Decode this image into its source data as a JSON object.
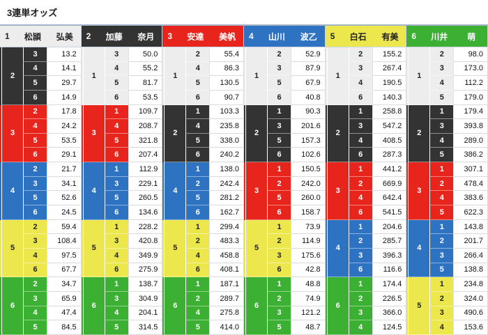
{
  "page_title": "3連単オッズ",
  "colors": {
    "1": {
      "bg": "#ededed",
      "fg": "#222222"
    },
    "2": {
      "bg": "#333333",
      "fg": "#ffffff"
    },
    "3": {
      "bg": "#e8251d",
      "fg": "#ffffff"
    },
    "4": {
      "bg": "#2e72c2",
      "fg": "#ffffff"
    },
    "5": {
      "bg": "#ebe74d",
      "fg": "#222222"
    },
    "6": {
      "bg": "#3cb032",
      "fg": "#ffffff"
    }
  },
  "columns": [
    {
      "racer_no": "1",
      "last_name": "松頴",
      "first_name": "弘美",
      "groups": [
        {
          "second": "2",
          "rows": [
            {
              "third": "3",
              "odds": "13.2"
            },
            {
              "third": "4",
              "odds": "14.1"
            },
            {
              "third": "5",
              "odds": "29.7"
            },
            {
              "third": "6",
              "odds": "14.9"
            }
          ]
        },
        {
          "second": "3",
          "rows": [
            {
              "third": "2",
              "odds": "17.8"
            },
            {
              "third": "4",
              "odds": "24.2"
            },
            {
              "third": "5",
              "odds": "53.5"
            },
            {
              "third": "6",
              "odds": "29.1"
            }
          ]
        },
        {
          "second": "4",
          "rows": [
            {
              "third": "2",
              "odds": "21.7"
            },
            {
              "third": "3",
              "odds": "34.1"
            },
            {
              "third": "5",
              "odds": "52.6"
            },
            {
              "third": "6",
              "odds": "24.5"
            }
          ]
        },
        {
          "second": "5",
          "rows": [
            {
              "third": "2",
              "odds": "59.4"
            },
            {
              "third": "3",
              "odds": "108.4"
            },
            {
              "third": "4",
              "odds": "97.5"
            },
            {
              "third": "6",
              "odds": "67.7"
            }
          ]
        },
        {
          "second": "6",
          "rows": [
            {
              "third": "2",
              "odds": "34.7"
            },
            {
              "third": "3",
              "odds": "65.9"
            },
            {
              "third": "4",
              "odds": "47.4"
            },
            {
              "third": "5",
              "odds": "84.5"
            }
          ]
        }
      ]
    },
    {
      "racer_no": "2",
      "last_name": "加藤",
      "first_name": "奈月",
      "groups": [
        {
          "second": "1",
          "rows": [
            {
              "third": "3",
              "odds": "50.0"
            },
            {
              "third": "4",
              "odds": "55.2"
            },
            {
              "third": "5",
              "odds": "81.7"
            },
            {
              "third": "6",
              "odds": "53.5"
            }
          ]
        },
        {
          "second": "3",
          "rows": [
            {
              "third": "1",
              "odds": "109.7"
            },
            {
              "third": "4",
              "odds": "208.7"
            },
            {
              "third": "5",
              "odds": "321.8"
            },
            {
              "third": "6",
              "odds": "207.4"
            }
          ]
        },
        {
          "second": "4",
          "rows": [
            {
              "third": "1",
              "odds": "112.9"
            },
            {
              "third": "3",
              "odds": "229.1"
            },
            {
              "third": "5",
              "odds": "260.5"
            },
            {
              "third": "6",
              "odds": "134.6"
            }
          ]
        },
        {
          "second": "5",
          "rows": [
            {
              "third": "1",
              "odds": "228.2"
            },
            {
              "third": "3",
              "odds": "420.8"
            },
            {
              "third": "4",
              "odds": "349.9"
            },
            {
              "third": "6",
              "odds": "275.9"
            }
          ]
        },
        {
          "second": "6",
          "rows": [
            {
              "third": "1",
              "odds": "138.7"
            },
            {
              "third": "3",
              "odds": "304.9"
            },
            {
              "third": "4",
              "odds": "204.1"
            },
            {
              "third": "5",
              "odds": "314.5"
            }
          ]
        }
      ]
    },
    {
      "racer_no": "3",
      "last_name": "安達",
      "first_name": "美帆",
      "groups": [
        {
          "second": "1",
          "rows": [
            {
              "third": "2",
              "odds": "55.4"
            },
            {
              "third": "4",
              "odds": "86.3"
            },
            {
              "third": "5",
              "odds": "130.5"
            },
            {
              "third": "6",
              "odds": "90.7"
            }
          ]
        },
        {
          "second": "2",
          "rows": [
            {
              "third": "1",
              "odds": "103.3"
            },
            {
              "third": "4",
              "odds": "235.8"
            },
            {
              "third": "5",
              "odds": "338.0"
            },
            {
              "third": "6",
              "odds": "240.2"
            }
          ]
        },
        {
          "second": "4",
          "rows": [
            {
              "third": "1",
              "odds": "138.0"
            },
            {
              "third": "2",
              "odds": "242.4"
            },
            {
              "third": "5",
              "odds": "281.2"
            },
            {
              "third": "6",
              "odds": "162.7"
            }
          ]
        },
        {
          "second": "5",
          "rows": [
            {
              "third": "1",
              "odds": "299.4"
            },
            {
              "third": "2",
              "odds": "483.3"
            },
            {
              "third": "4",
              "odds": "458.8"
            },
            {
              "third": "6",
              "odds": "408.1"
            }
          ]
        },
        {
          "second": "6",
          "rows": [
            {
              "third": "1",
              "odds": "187.1"
            },
            {
              "third": "2",
              "odds": "289.7"
            },
            {
              "third": "4",
              "odds": "275.8"
            },
            {
              "third": "5",
              "odds": "414.0"
            }
          ]
        }
      ]
    },
    {
      "racer_no": "4",
      "last_name": "山川",
      "first_name": "波乙",
      "groups": [
        {
          "second": "1",
          "rows": [
            {
              "third": "2",
              "odds": "52.9"
            },
            {
              "third": "3",
              "odds": "87.9"
            },
            {
              "third": "5",
              "odds": "67.9"
            },
            {
              "third": "6",
              "odds": "40.8"
            }
          ]
        },
        {
          "second": "2",
          "rows": [
            {
              "third": "1",
              "odds": "90.3"
            },
            {
              "third": "3",
              "odds": "201.6"
            },
            {
              "third": "5",
              "odds": "157.3"
            },
            {
              "third": "6",
              "odds": "102.6"
            }
          ]
        },
        {
          "second": "3",
          "rows": [
            {
              "third": "1",
              "odds": "150.5"
            },
            {
              "third": "2",
              "odds": "242.0"
            },
            {
              "third": "5",
              "odds": "260.0"
            },
            {
              "third": "6",
              "odds": "158.7"
            }
          ]
        },
        {
          "second": "5",
          "rows": [
            {
              "third": "1",
              "odds": "73.9"
            },
            {
              "third": "2",
              "odds": "114.9"
            },
            {
              "third": "3",
              "odds": "175.6"
            },
            {
              "third": "6",
              "odds": "42.8"
            }
          ]
        },
        {
          "second": "6",
          "rows": [
            {
              "third": "1",
              "odds": "48.8"
            },
            {
              "third": "2",
              "odds": "74.9"
            },
            {
              "third": "3",
              "odds": "121.2"
            },
            {
              "third": "5",
              "odds": "48.7"
            }
          ]
        }
      ]
    },
    {
      "racer_no": "5",
      "last_name": "白石",
      "first_name": "有美",
      "groups": [
        {
          "second": "1",
          "rows": [
            {
              "third": "2",
              "odds": "155.2"
            },
            {
              "third": "3",
              "odds": "267.4"
            },
            {
              "third": "4",
              "odds": "190.5"
            },
            {
              "third": "6",
              "odds": "140.3"
            }
          ]
        },
        {
          "second": "2",
          "rows": [
            {
              "third": "1",
              "odds": "258.8"
            },
            {
              "third": "3",
              "odds": "547.2"
            },
            {
              "third": "4",
              "odds": "408.5"
            },
            {
              "third": "6",
              "odds": "287.3"
            }
          ]
        },
        {
          "second": "3",
          "rows": [
            {
              "third": "1",
              "odds": "441.2"
            },
            {
              "third": "2",
              "odds": "669.9"
            },
            {
              "third": "4",
              "odds": "642.4"
            },
            {
              "third": "6",
              "odds": "541.5"
            }
          ]
        },
        {
          "second": "4",
          "rows": [
            {
              "third": "1",
              "odds": "204.6"
            },
            {
              "third": "2",
              "odds": "285.7"
            },
            {
              "third": "3",
              "odds": "396.3"
            },
            {
              "third": "6",
              "odds": "116.6"
            }
          ]
        },
        {
          "second": "6",
          "rows": [
            {
              "third": "1",
              "odds": "174.4"
            },
            {
              "third": "2",
              "odds": "226.5"
            },
            {
              "third": "3",
              "odds": "366.0"
            },
            {
              "third": "4",
              "odds": "124.5"
            }
          ]
        }
      ]
    },
    {
      "racer_no": "6",
      "last_name": "川井",
      "first_name": "萌",
      "groups": [
        {
          "second": "1",
          "rows": [
            {
              "third": "2",
              "odds": "98.0"
            },
            {
              "third": "3",
              "odds": "173.0"
            },
            {
              "third": "4",
              "odds": "112.2"
            },
            {
              "third": "5",
              "odds": "179.0"
            }
          ]
        },
        {
          "second": "2",
          "rows": [
            {
              "third": "1",
              "odds": "179.4"
            },
            {
              "third": "3",
              "odds": "393.8"
            },
            {
              "third": "4",
              "odds": "289.0"
            },
            {
              "third": "5",
              "odds": "386.2"
            }
          ]
        },
        {
          "second": "3",
          "rows": [
            {
              "third": "1",
              "odds": "307.1"
            },
            {
              "third": "2",
              "odds": "478.4"
            },
            {
              "third": "4",
              "odds": "383.6"
            },
            {
              "third": "5",
              "odds": "622.3"
            }
          ]
        },
        {
          "second": "4",
          "rows": [
            {
              "third": "1",
              "odds": "143.8"
            },
            {
              "third": "2",
              "odds": "201.7"
            },
            {
              "third": "3",
              "odds": "266.4"
            },
            {
              "third": "5",
              "odds": "138.8"
            }
          ]
        },
        {
          "second": "5",
          "rows": [
            {
              "third": "1",
              "odds": "234.8"
            },
            {
              "third": "2",
              "odds": "324.0"
            },
            {
              "third": "3",
              "odds": "490.6"
            },
            {
              "third": "4",
              "odds": "153.6"
            }
          ]
        }
      ]
    }
  ]
}
